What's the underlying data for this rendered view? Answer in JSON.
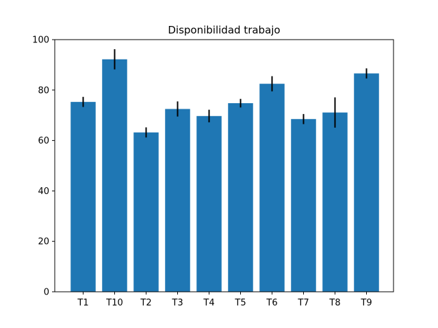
{
  "chart_data": {
    "type": "bar",
    "title": "Disponibilidad trabajo",
    "xlabel": "",
    "ylabel": "",
    "categories": [
      "T1",
      "T10",
      "T2",
      "T3",
      "T4",
      "T5",
      "T6",
      "T7",
      "T8",
      "T9"
    ],
    "values": [
      75.3,
      92.2,
      63.2,
      72.5,
      69.7,
      74.8,
      82.5,
      68.5,
      71.1,
      86.6
    ],
    "error": [
      2.0,
      4.0,
      2.0,
      3.0,
      2.5,
      1.7,
      3.0,
      2.0,
      6.0,
      2.0
    ],
    "ylim": [
      0,
      100
    ],
    "yticks": [
      0,
      20,
      40,
      60,
      80,
      100
    ],
    "bar_color": "#1f77b4",
    "error_color": "#000000",
    "grid": false,
    "legend": "none"
  }
}
